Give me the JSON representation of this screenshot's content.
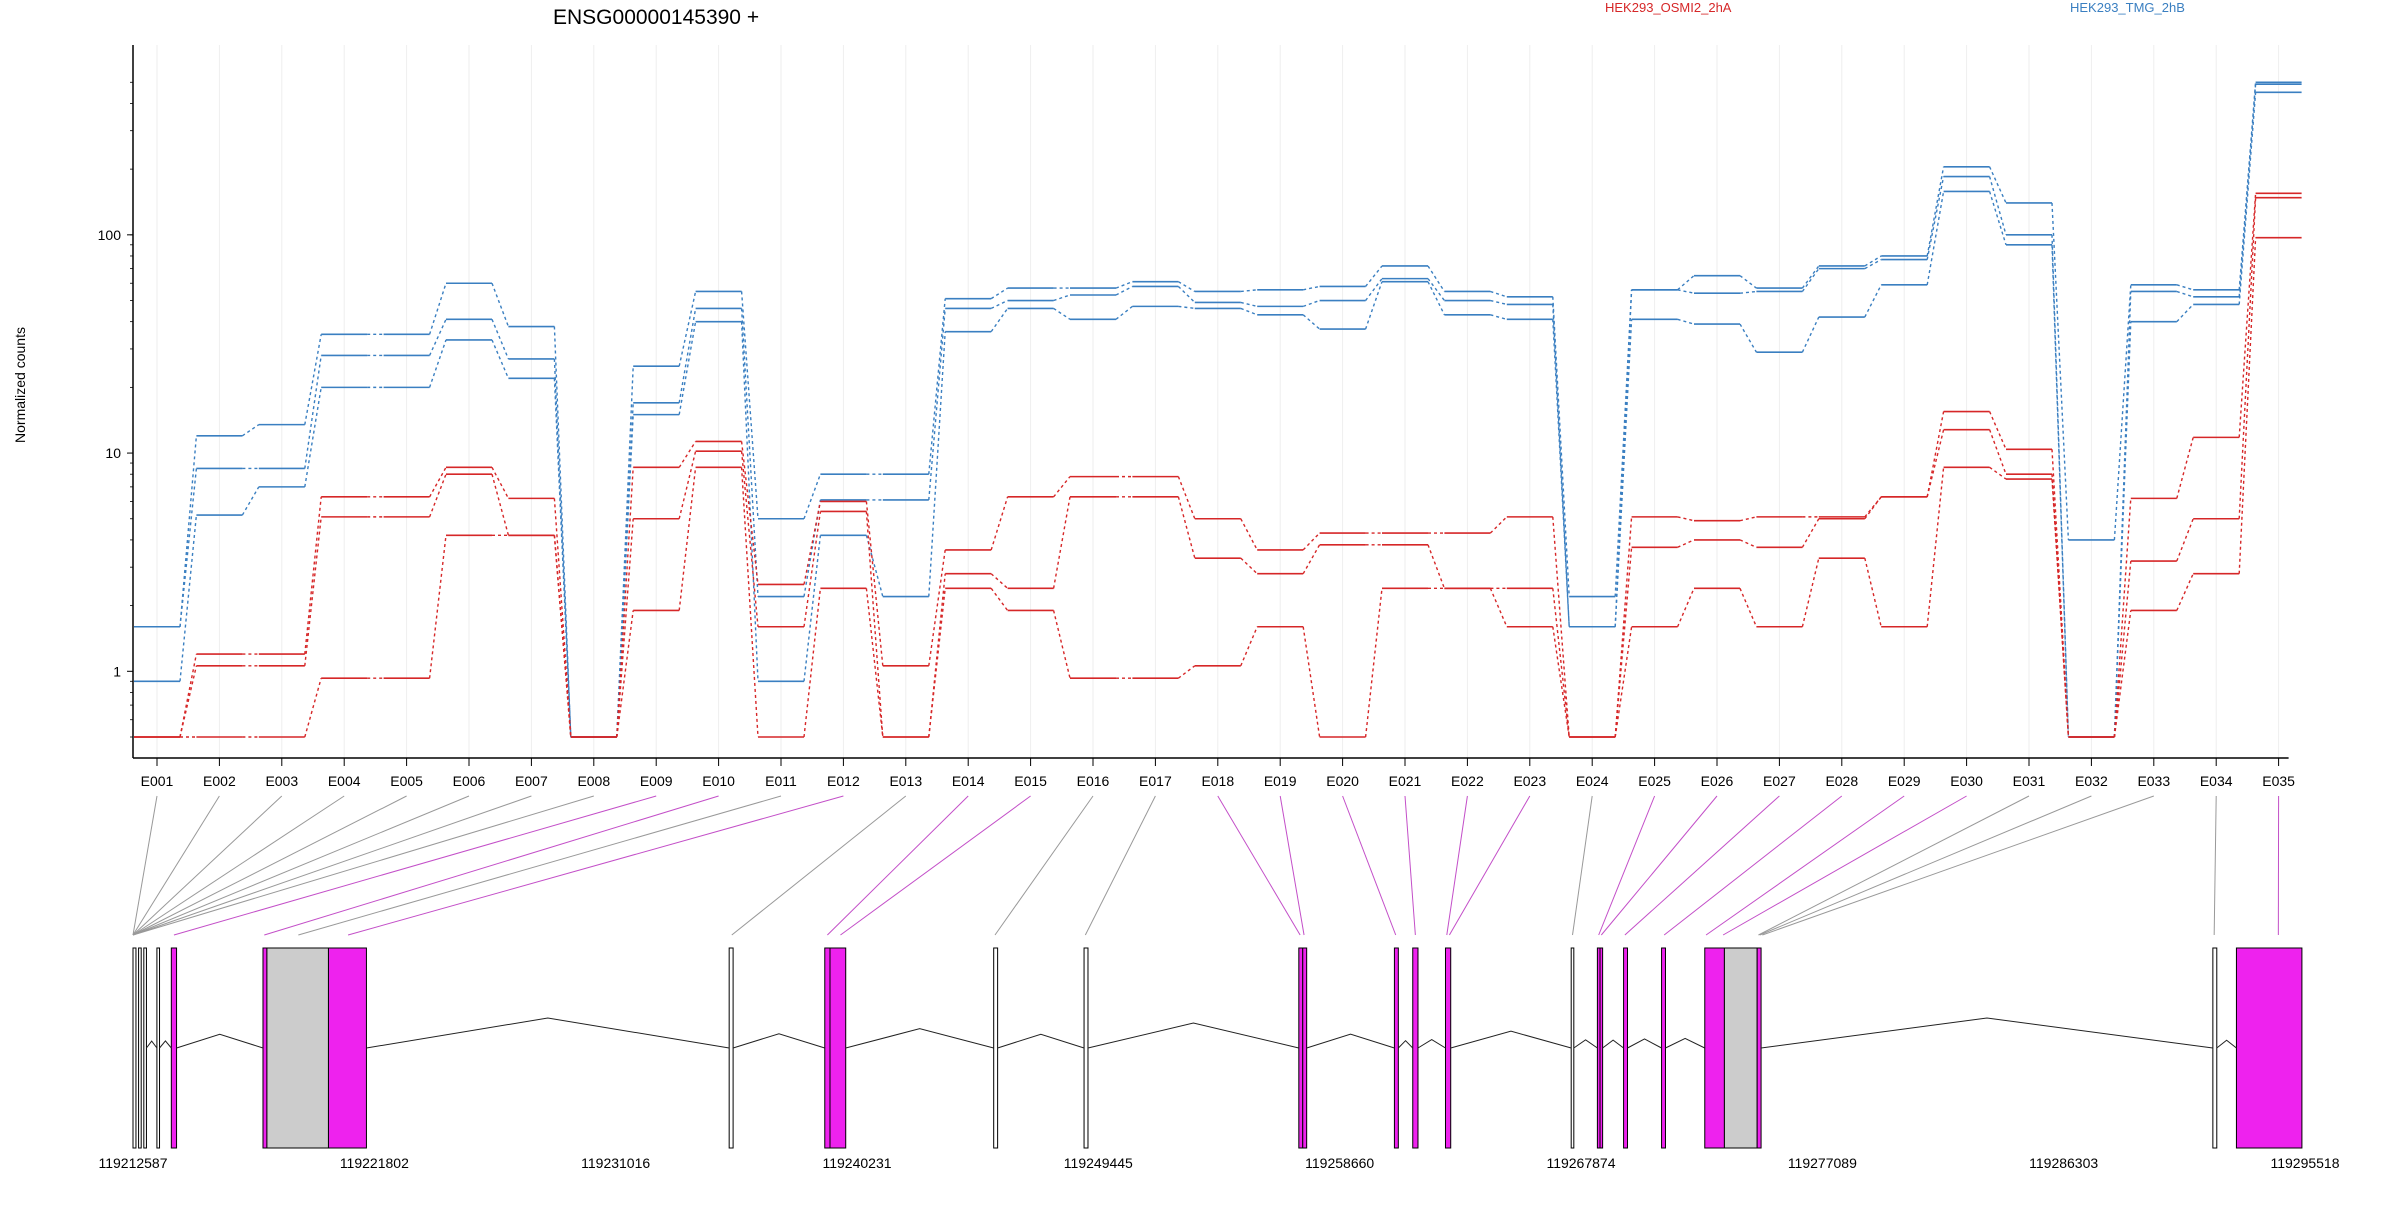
{
  "chart_data": {
    "type": "line",
    "title": "ENSG00000145390 +",
    "ylabel": "Normalized counts",
    "yscale": "log",
    "yticks": [
      1,
      10,
      100
    ],
    "ytick_labels": [
      "1",
      "10",
      "100"
    ],
    "ylim": [
      0.5,
      600
    ],
    "grid": "vertical per exon",
    "legend": {
      "placement": "top-right",
      "entries": [
        "HEK293_OSMI2_2hA",
        "HEK293_TMG_2hB"
      ]
    },
    "colors": {
      "HEK293_OSMI2_2hA": "#d62728",
      "HEK293_TMG_2hB": "#3a7fc1",
      "exon_used": "#ee22ee",
      "exon_other": "#cccccc"
    },
    "categories": [
      "E001",
      "E002",
      "E003",
      "E004",
      "E005",
      "E006",
      "E007",
      "E008",
      "E009",
      "E010",
      "E011",
      "E012",
      "E013",
      "E014",
      "E015",
      "E016",
      "E017",
      "E018",
      "E019",
      "E020",
      "E021",
      "E022",
      "E023",
      "E024",
      "E025",
      "E026",
      "E027",
      "E028",
      "E029",
      "E030",
      "E031",
      "E032",
      "E033",
      "E034",
      "E035"
    ],
    "series": [
      {
        "group": "HEK293_TMG_2hB",
        "values": [
          1.6,
          12,
          13.5,
          35,
          35,
          60,
          38,
          0.5,
          25,
          55,
          5,
          8,
          8,
          51,
          57,
          57,
          61,
          55,
          56,
          58,
          72,
          55,
          52,
          2.2,
          56,
          65,
          57,
          72,
          80,
          205,
          140,
          4,
          59,
          56,
          500
        ]
      },
      {
        "group": "HEK293_TMG_2hB",
        "values": [
          1.6,
          8.5,
          8.5,
          28,
          28,
          41,
          27,
          0.5,
          17,
          46,
          2.2,
          6.1,
          6.1,
          46,
          50,
          53,
          58,
          49,
          47,
          50,
          63,
          50,
          48,
          1.6,
          56,
          54,
          55,
          70,
          77,
          185,
          100,
          0.5,
          55,
          52,
          490
        ]
      },
      {
        "group": "HEK293_TMG_2hB",
        "values": [
          0.9,
          5.2,
          7,
          20,
          20,
          33,
          22,
          0.5,
          15,
          40,
          0.9,
          4.2,
          2.2,
          36,
          46,
          41,
          47,
          46,
          43,
          37,
          61,
          43,
          41,
          1.6,
          41,
          39,
          29,
          42,
          59,
          158,
          90,
          0.5,
          40,
          48,
          450
        ]
      },
      {
        "group": "HEK293_OSMI2_2hA",
        "values": [
          0.5,
          1.2,
          1.2,
          6.3,
          6.3,
          8.6,
          6.2,
          0.5,
          8.6,
          11.3,
          2.5,
          6,
          1.06,
          3.6,
          6.3,
          7.8,
          7.8,
          5,
          3.6,
          4.3,
          4.3,
          4.3,
          5.1,
          0.5,
          5.1,
          4.9,
          5.1,
          5.1,
          6.3,
          15.5,
          10.4,
          0.5,
          6.2,
          11.8,
          155
        ]
      },
      {
        "group": "HEK293_OSMI2_2hA",
        "values": [
          0.5,
          1.06,
          1.06,
          5.1,
          5.1,
          8,
          4.2,
          0.5,
          5,
          10.2,
          1.6,
          5.4,
          0.5,
          2.8,
          2.4,
          6.3,
          6.3,
          3.3,
          2.8,
          3.8,
          3.8,
          2.4,
          2.4,
          0.5,
          3.7,
          4,
          3.7,
          5,
          6.3,
          12.8,
          8,
          0.5,
          3.2,
          5,
          148
        ]
      },
      {
        "group": "HEK293_OSMI2_2hA",
        "values": [
          0.5,
          0.5,
          0.5,
          0.93,
          0.93,
          4.2,
          4.2,
          0.5,
          1.9,
          8.6,
          0.5,
          2.4,
          0.5,
          2.4,
          1.9,
          0.93,
          0.93,
          1.06,
          1.6,
          0.5,
          2.4,
          2.4,
          1.6,
          0.5,
          1.6,
          2.4,
          1.6,
          3.3,
          1.6,
          8.6,
          7.6,
          0.5,
          1.9,
          2.8,
          97
        ]
      }
    ],
    "gene_model": {
      "xlim": [
        119212587,
        119295518
      ],
      "xticks": [
        119212587,
        119221802,
        119231016,
        119240231,
        119249445,
        119258660,
        119267874,
        119277089,
        119286303,
        119295518
      ],
      "xtick_labels": [
        "119212587",
        "119221802",
        "119231016",
        "119240231",
        "119249445",
        "119258660",
        "119267874",
        "119277089",
        "119286303",
        "119295518"
      ],
      "exons": [
        {
          "start": 119212587,
          "end": 119212700,
          "flag": "other"
        },
        {
          "start": 119212800,
          "end": 119212900,
          "flag": "other"
        },
        {
          "start": 119213000,
          "end": 119213100,
          "flag": "other"
        },
        {
          "start": 119213500,
          "end": 119213600,
          "flag": "other"
        },
        {
          "start": 119214050,
          "end": 119214250,
          "flag": "used"
        },
        {
          "start": 119217550,
          "end": 119217700,
          "flag": "used"
        },
        {
          "start": 119217700,
          "end": 119220050,
          "flag": "other"
        },
        {
          "start": 119220050,
          "end": 119221500,
          "flag": "used"
        },
        {
          "start": 119235350,
          "end": 119235500,
          "flag": "other"
        },
        {
          "start": 119239000,
          "end": 119239200,
          "flag": "used"
        },
        {
          "start": 119239200,
          "end": 119239800,
          "flag": "used"
        },
        {
          "start": 119245450,
          "end": 119245600,
          "flag": "other"
        },
        {
          "start": 119248900,
          "end": 119249050,
          "flag": "other"
        },
        {
          "start": 119257100,
          "end": 119257250,
          "flag": "used"
        },
        {
          "start": 119257250,
          "end": 119257400,
          "flag": "used"
        },
        {
          "start": 119260750,
          "end": 119260900,
          "flag": "used"
        },
        {
          "start": 119261450,
          "end": 119261650,
          "flag": "used"
        },
        {
          "start": 119262700,
          "end": 119262900,
          "flag": "used"
        },
        {
          "start": 119267500,
          "end": 119267600,
          "flag": "other"
        },
        {
          "start": 119268500,
          "end": 119268600,
          "flag": "used"
        },
        {
          "start": 119268600,
          "end": 119268700,
          "flag": "used"
        },
        {
          "start": 119269500,
          "end": 119269650,
          "flag": "used"
        },
        {
          "start": 119270950,
          "end": 119271100,
          "flag": "used"
        },
        {
          "start": 119272600,
          "end": 119273350,
          "flag": "used"
        },
        {
          "start": 119273350,
          "end": 119274600,
          "flag": "other"
        },
        {
          "start": 119274600,
          "end": 119274750,
          "flag": "used"
        },
        {
          "start": 119292000,
          "end": 119292150,
          "flag": "other"
        },
        {
          "start": 119292900,
          "end": 119295400,
          "flag": "used"
        }
      ],
      "exon_anchor_positions": [
        119212587,
        119212587,
        119212587,
        119212587,
        119212587,
        119212587,
        119212587,
        119212587,
        119214150,
        119217600,
        119218900,
        119220800,
        119235450,
        119239100,
        119239600,
        119245500,
        119248950,
        119257150,
        119257300,
        119260800,
        119261550,
        119262750,
        119262850,
        119267550,
        119268550,
        119268650,
        119269550,
        119271050,
        119272650,
        119273300,
        119274650,
        119274700,
        119274800,
        119292050,
        119294500
      ]
    }
  }
}
